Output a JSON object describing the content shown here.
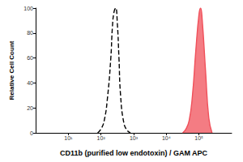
{
  "chart_data": {
    "type": "line",
    "x_label": "CD11b (purified low endotoxin) / GAM APC",
    "y_label": "Relative Cell Count",
    "log": "x",
    "grid": false,
    "xlim": [
      1,
      1000000
    ],
    "xticks": [
      {
        "value": 10,
        "label": "10¹"
      },
      {
        "value": 100,
        "label": "10²"
      },
      {
        "value": 1000,
        "label": "10³"
      },
      {
        "value": 10000,
        "label": "10⁴"
      },
      {
        "value": 100000,
        "label": "10⁵"
      }
    ],
    "ylim": [
      0,
      100
    ],
    "yticks": [
      0,
      20,
      40,
      60,
      80,
      100
    ],
    "series": [
      {
        "type": "line",
        "color": "#000000",
        "line_style": "dashed",
        "x": [
          79,
          100,
          126,
          158,
          200,
          224,
          251,
          282,
          316,
          355,
          398,
          501,
          631,
          794
        ],
        "values": [
          0,
          3,
          10,
          28,
          60,
          85,
          97,
          100,
          88,
          60,
          30,
          8,
          2,
          0
        ]
      },
      {
        "type": "area",
        "color": "#f0505a",
        "line_style": "solid",
        "x": [
          31623,
          39811,
          50119,
          63096,
          79433,
          100000,
          112202,
          125893,
          158489,
          199526,
          251189
        ],
        "values": [
          0,
          3,
          10,
          30,
          65,
          95,
          100,
          90,
          50,
          12,
          0
        ]
      }
    ]
  }
}
